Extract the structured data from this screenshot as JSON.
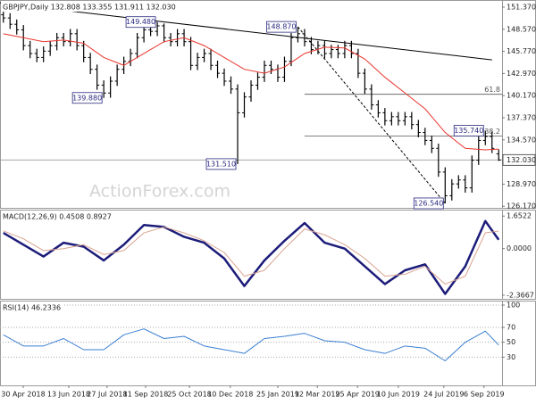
{
  "chart_data": [
    {
      "type": "candlestick",
      "title": "GBPJPY,Daily  132.808 133.355 131.911 132.030",
      "watermark": "ActionForex.com",
      "xlim": [
        -0.5,
        74.5
      ],
      "ylim": [
        125.97,
        152.27
      ],
      "yticks": [
        {
          "value": 151.37,
          "label": "151.370"
        },
        {
          "value": 148.57,
          "label": "148.570"
        },
        {
          "value": 145.77,
          "label": "145.770"
        },
        {
          "value": 142.97,
          "label": "142.970"
        },
        {
          "value": 140.17,
          "label": "140.170"
        },
        {
          "value": 137.37,
          "label": "137.370"
        },
        {
          "value": 134.57,
          "label": "134.570"
        },
        {
          "value": 128.97,
          "label": "128.970"
        },
        {
          "value": 126.17,
          "label": "126.170"
        }
      ],
      "last_price": {
        "value": 132.03,
        "label": "132.030"
      },
      "color": "#000000",
      "opens": [
        150.4,
        150.0,
        149.2,
        148.5,
        146.5,
        145.5,
        145.0,
        145.8,
        146.5,
        147.5,
        147.0,
        148.0,
        146.5,
        145.0,
        143.5,
        141.5,
        140.5,
        142.0,
        143.5,
        144.5,
        145.5,
        147.5,
        148.5,
        148.3,
        149.0,
        147.5,
        147.0,
        148.0,
        147.0,
        144.0,
        145.0,
        145.5,
        144.0,
        143.0,
        142.0,
        141.0,
        138.0,
        140.0,
        141.5,
        142.5,
        144.0,
        143.5,
        142.5,
        144.5,
        147.5,
        148.0,
        147.0,
        146.0,
        146.5,
        145.5,
        146.0,
        145.5,
        146.5,
        145.5,
        143.0,
        141.0,
        139.0,
        138.0,
        137.0,
        137.5,
        137.0,
        137.5,
        136.5,
        135.5,
        134.5,
        133.5,
        130.5,
        127.5,
        129.0,
        129.5,
        128.5,
        132.0,
        134.5,
        135.0,
        132.808
      ],
      "highs": [
        151.0,
        150.6,
        149.8,
        149.1,
        147.1,
        146.1,
        146.4,
        147.1,
        148.1,
        148.1,
        148.6,
        148.6,
        147.1,
        145.6,
        144.1,
        142.1,
        142.6,
        144.1,
        145.1,
        146.1,
        148.1,
        149.1,
        149.1,
        149.48,
        149.3,
        148.1,
        148.6,
        148.6,
        147.6,
        145.6,
        146.1,
        146.1,
        144.6,
        143.6,
        142.6,
        141.6,
        140.6,
        142.1,
        143.1,
        144.6,
        144.6,
        144.1,
        145.1,
        148.1,
        148.87,
        148.6,
        147.6,
        147.1,
        147.1,
        146.6,
        146.6,
        147.1,
        147.1,
        146.1,
        143.6,
        141.6,
        139.6,
        138.6,
        138.1,
        138.1,
        138.1,
        138.1,
        137.1,
        136.1,
        135.1,
        134.1,
        131.1,
        129.6,
        130.1,
        130.1,
        132.6,
        135.1,
        135.74,
        135.6,
        133.355
      ],
      "lows": [
        149.4,
        148.6,
        147.9,
        145.9,
        144.9,
        144.4,
        144.4,
        145.2,
        145.9,
        146.4,
        146.4,
        145.9,
        144.4,
        142.9,
        140.9,
        139.88,
        139.9,
        141.4,
        142.9,
        143.9,
        144.9,
        146.9,
        147.7,
        147.7,
        146.9,
        146.4,
        146.4,
        146.4,
        143.4,
        143.4,
        144.4,
        143.4,
        142.4,
        141.4,
        140.4,
        131.51,
        137.4,
        139.4,
        140.9,
        141.9,
        142.9,
        141.9,
        141.9,
        143.9,
        146.9,
        146.4,
        145.4,
        145.4,
        144.9,
        144.9,
        144.9,
        144.9,
        144.9,
        142.4,
        140.4,
        138.4,
        137.4,
        136.4,
        136.4,
        136.4,
        136.4,
        135.9,
        134.9,
        133.9,
        132.9,
        129.9,
        126.54,
        126.9,
        128.4,
        127.9,
        127.9,
        131.4,
        133.9,
        132.9,
        131.911
      ],
      "closes": [
        150.0,
        149.2,
        148.5,
        146.5,
        145.5,
        145.0,
        145.8,
        146.5,
        147.5,
        147.0,
        148.0,
        146.5,
        145.0,
        143.5,
        141.5,
        140.5,
        142.0,
        143.5,
        144.5,
        145.5,
        147.5,
        148.5,
        148.3,
        149.0,
        147.5,
        147.0,
        148.0,
        147.0,
        144.0,
        145.0,
        145.5,
        144.0,
        143.0,
        142.0,
        141.0,
        138.0,
        140.0,
        141.5,
        142.5,
        144.0,
        143.5,
        142.5,
        144.5,
        147.5,
        148.0,
        147.0,
        146.0,
        146.5,
        145.5,
        146.0,
        145.5,
        146.5,
        145.5,
        143.0,
        141.0,
        139.0,
        138.0,
        137.0,
        137.5,
        137.0,
        137.5,
        136.5,
        135.5,
        134.5,
        133.5,
        130.5,
        127.5,
        129.0,
        129.5,
        128.5,
        132.0,
        134.5,
        135.0,
        133.5,
        132.03
      ],
      "moving_average": {
        "color": "#e8342c",
        "x": [
          0,
          3,
          6,
          9,
          12,
          15,
          18,
          21,
          24,
          27,
          30,
          33,
          36,
          39,
          42,
          45,
          48,
          51,
          54,
          57,
          60,
          63,
          66,
          69,
          72,
          74
        ],
        "values": [
          148.0,
          147.5,
          147.0,
          147.2,
          146.8,
          145.0,
          144.0,
          145.5,
          147.0,
          147.5,
          146.5,
          145.0,
          143.5,
          143.0,
          143.8,
          145.5,
          146.3,
          146.2,
          144.8,
          142.5,
          140.5,
          138.5,
          135.5,
          133.5,
          133.3,
          133.4
        ]
      },
      "trend_lines": [
        {
          "color": "#000000",
          "dashed": false,
          "x": [
            -0.5,
            73
          ],
          "values": [
            151.9,
            144.7
          ]
        },
        {
          "color": "#000000",
          "dashed": true,
          "x": [
            44,
            66
          ],
          "values": [
            148.87,
            126.54
          ]
        }
      ],
      "fib_levels": [
        {
          "label": "61.8",
          "value": 140.34,
          "x": 45
        },
        {
          "label": "38.2",
          "value": 135.07,
          "x": 45
        }
      ],
      "annotations": [
        {
          "label": "139.880",
          "value": 139.88,
          "x": 15
        },
        {
          "label": "149.480",
          "value": 149.48,
          "x": 23
        },
        {
          "label": "148.870",
          "value": 148.87,
          "x": 44
        },
        {
          "label": "131.510",
          "value": 131.51,
          "x": 35
        },
        {
          "label": "135.740",
          "value": 135.74,
          "x": 72
        },
        {
          "label": "126.540",
          "value": 126.54,
          "x": 66
        }
      ]
    },
    {
      "type": "line",
      "title": "MACD(12,26,9) 0.4508 0.8927",
      "xlim": [
        -0.5,
        74.5
      ],
      "ylim": [
        -2.55,
        1.98
      ],
      "yticks": [
        1.6522,
        {
          "value": 0,
          "label": "0.0000"
        },
        -2.3667
      ],
      "series": [
        {
          "color": "#1c1c7a",
          "width": 2.5,
          "x": [
            0,
            3,
            6,
            9,
            12,
            15,
            18,
            21,
            24,
            27,
            30,
            33,
            36,
            39,
            42,
            45,
            48,
            51,
            54,
            57,
            60,
            63,
            66,
            69,
            72,
            74
          ],
          "values": [
            0.8,
            0.2,
            -0.4,
            0.3,
            0.1,
            -0.6,
            0.2,
            1.2,
            1.1,
            0.6,
            0.3,
            -0.5,
            -1.9,
            -0.6,
            0.4,
            1.3,
            0.3,
            0.0,
            -0.9,
            -1.8,
            -1.1,
            -0.8,
            -2.3,
            -0.9,
            1.4,
            0.45
          ]
        },
        {
          "color": "#d9a38f",
          "width": 1,
          "x": [
            0,
            3,
            6,
            9,
            12,
            15,
            18,
            21,
            24,
            27,
            30,
            33,
            36,
            39,
            42,
            45,
            48,
            51,
            54,
            57,
            60,
            63,
            66,
            69,
            72,
            74
          ],
          "values": [
            0.9,
            0.5,
            -0.1,
            0.0,
            0.2,
            -0.3,
            -0.1,
            0.8,
            1.1,
            0.8,
            0.4,
            -0.2,
            -1.4,
            -1.1,
            0.0,
            1.0,
            0.7,
            0.2,
            -0.5,
            -1.4,
            -1.3,
            -0.9,
            -1.8,
            -1.4,
            0.8,
            0.89
          ]
        }
      ]
    },
    {
      "type": "line",
      "title": "RSI(14) 46.2336",
      "xlim": [
        -0.5,
        74.5
      ],
      "ylim": [
        -8,
        106
      ],
      "yticks": [
        100,
        70,
        50,
        30
      ],
      "grid": true,
      "xticks": [
        {
          "value": 2.97,
          "label": "30 Apr 2018"
        },
        {
          "value": 9.77,
          "label": "13 Jun 2018"
        },
        {
          "value": 15.5,
          "label": "27 Jul 2018"
        },
        {
          "value": 21.25,
          "label": "11 Sep 2018"
        },
        {
          "value": 27.8,
          "label": "25 Oct 2018"
        },
        {
          "value": 33.9,
          "label": "10 Dec 2018"
        },
        {
          "value": 41.0,
          "label": "25 Jan 2019"
        },
        {
          "value": 46.9,
          "label": "12 Mar 2019"
        },
        {
          "value": 52.9,
          "label": "25 Apr 2019"
        },
        {
          "value": 59.0,
          "label": "10 Jun 2019"
        },
        {
          "value": 65.8,
          "label": "24 Jul 2019"
        },
        {
          "value": 71.8,
          "label": "6 Sep 2019"
        }
      ],
      "series": [
        {
          "color": "#3a7fd0",
          "width": 1,
          "x": [
            0,
            3,
            6,
            9,
            12,
            15,
            18,
            21,
            24,
            27,
            30,
            33,
            36,
            39,
            42,
            45,
            48,
            51,
            54,
            57,
            60,
            63,
            66,
            69,
            72,
            74
          ],
          "values": [
            60,
            45,
            45,
            55,
            40,
            40,
            60,
            68,
            55,
            58,
            45,
            40,
            35,
            55,
            58,
            62,
            52,
            50,
            40,
            35,
            45,
            42,
            25,
            50,
            65,
            46.2336
          ]
        }
      ]
    }
  ]
}
